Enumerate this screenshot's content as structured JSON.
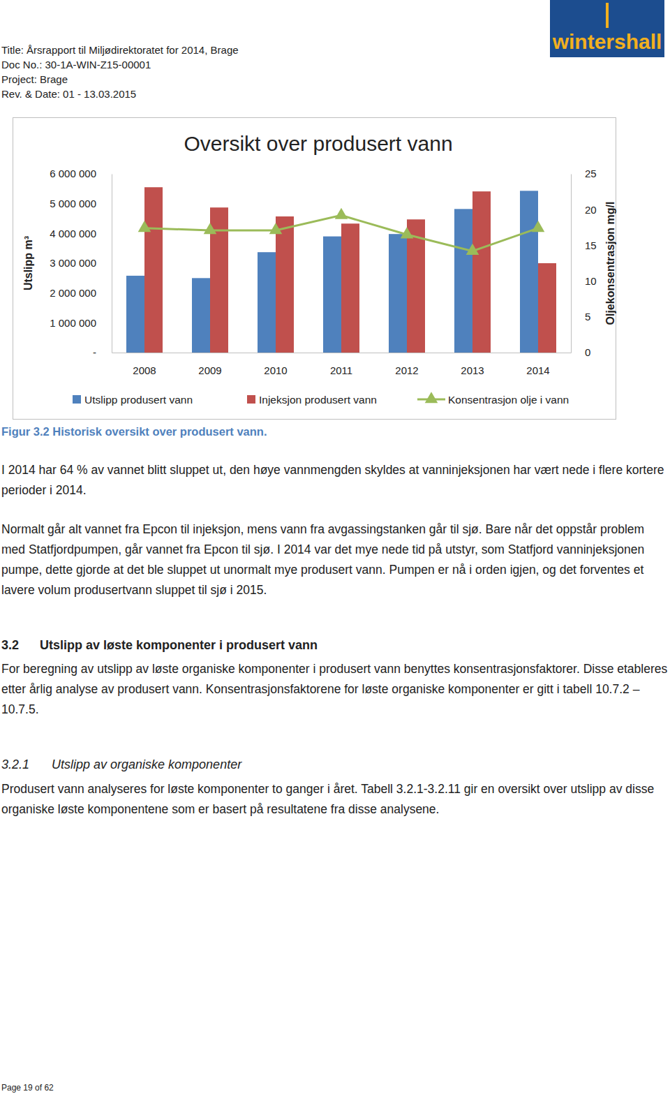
{
  "header": {
    "lines": [
      "Title: Årsrapport til Miljødirektoratet for 2014, Brage",
      "Doc No.: 30-1A-WIN-Z15-00001",
      "Project: Brage",
      "Rev. & Date: 01 - 13.03.2015"
    ],
    "logo": "wintershall"
  },
  "chart_data": {
    "type": "bar",
    "title": "Oversikt over produsert vann",
    "categories": [
      "2008",
      "2009",
      "2010",
      "2011",
      "2012",
      "2013",
      "2014"
    ],
    "series": [
      {
        "name": "Utslipp produsert vann",
        "type": "bar",
        "color": "#4f81bd",
        "values": [
          2580000,
          2500000,
          3370000,
          3900000,
          3980000,
          4820000,
          5430000
        ]
      },
      {
        "name": "Injeksjon produsert vann",
        "type": "bar",
        "color": "#c0504d",
        "values": [
          5550000,
          4870000,
          4570000,
          4330000,
          4470000,
          5410000,
          3000000
        ]
      },
      {
        "name": "Konsentrasjon olje i vann",
        "type": "line",
        "color": "#9bbb59",
        "marker": "triangle",
        "axis": "y2",
        "values": [
          17.4,
          17.1,
          17.1,
          19.2,
          16.5,
          14.2,
          17.4
        ]
      }
    ],
    "y_label": "Utslipp m³",
    "y2_label": "Oljekonsentrasjon mg/l",
    "ylim": [
      0,
      6000000
    ],
    "yticks": [
      {
        "value": 0,
        "label": "-"
      },
      {
        "value": 1000000,
        "label": "1 000 000"
      },
      {
        "value": 2000000,
        "label": "2 000 000"
      },
      {
        "value": 3000000,
        "label": "3 000 000"
      },
      {
        "value": 4000000,
        "label": "4 000 000"
      },
      {
        "value": 5000000,
        "label": "5 000 000"
      },
      {
        "value": 6000000,
        "label": "6 000 000"
      }
    ],
    "y2lim": [
      0,
      25
    ],
    "y2ticks": [
      0,
      5,
      10,
      15,
      20,
      25
    ],
    "legend": "bottom",
    "grid": false
  },
  "caption": "Figur 3.2 Historisk oversikt over produsert vann.",
  "sections": [
    {
      "paragraphs": [
        "I 2014 har 64 % av vannet blitt sluppet ut, den høye vannmengden skyldes at vanninjeksjonen har vært nede i flere kortere perioder i 2014.",
        "Normalt går alt vannet fra Epcon til injeksjon, mens vann fra avgassingstanken går til sjø. Bare når det oppstår problem med Statfjordpumpen, går vannet fra Epcon til sjø. I 2014 var det mye nede tid på utstyr, som Statfjord vanninjeksjonen pumpe, dette gjorde at det ble sluppet ut unormalt mye produsert vann. Pumpen er nå i orden igjen, og det forventes et lavere volum produsertvann sluppet til sjø i 2015."
      ]
    },
    {
      "number": "3.2",
      "heading": "Utslipp av løste komponenter i produsert vann",
      "paragraphs": [
        "For beregning av utslipp av løste organiske komponenter i produsert vann benyttes konsentrasjonsfaktorer. Disse etableres etter årlig analyse av produsert vann. Konsentrasjonsfaktorene for løste organiske komponenter er gitt i tabell 10.7.2 – 10.7.5."
      ]
    },
    {
      "number": "3.2.1",
      "heading": "Utslipp av organiske komponenter",
      "paragraphs": [
        "Produsert vann analyseres for løste komponenter to ganger i året. Tabell 3.2.1-3.2.11 gir en oversikt over utslipp av disse organiske løste komponentene som er basert på resultatene fra disse analysene."
      ]
    }
  ],
  "footer": "Page 19 of 62"
}
